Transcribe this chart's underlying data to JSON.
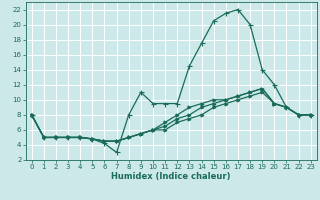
{
  "title": "",
  "xlabel": "Humidex (Indice chaleur)",
  "bg_color": "#cce8e8",
  "grid_color": "#ffffff",
  "line_color": "#1a6b5a",
  "xlim": [
    -0.5,
    23.5
  ],
  "ylim": [
    2,
    23
  ],
  "xticks": [
    0,
    1,
    2,
    3,
    4,
    5,
    6,
    7,
    8,
    9,
    10,
    11,
    12,
    13,
    14,
    15,
    16,
    17,
    18,
    19,
    20,
    21,
    22,
    23
  ],
  "yticks": [
    2,
    4,
    6,
    8,
    10,
    12,
    14,
    16,
    18,
    20,
    22
  ],
  "curve1_x": [
    0,
    1,
    2,
    3,
    4,
    5,
    6,
    7,
    8,
    9,
    10,
    11,
    12,
    13,
    14,
    15,
    16,
    17,
    18,
    19,
    20,
    21,
    22,
    23
  ],
  "curve1_y": [
    8,
    5,
    5,
    5,
    5,
    4.8,
    4.2,
    3,
    8,
    11,
    9.5,
    9.5,
    9.5,
    14.5,
    17.5,
    20.5,
    21.5,
    22,
    20,
    14,
    12,
    9,
    8,
    8
  ],
  "curve2_x": [
    0,
    1,
    2,
    3,
    4,
    5,
    6,
    7,
    8,
    9,
    10,
    11,
    12,
    13,
    14,
    15,
    16,
    17,
    18,
    19,
    20,
    21,
    22,
    23
  ],
  "curve2_y": [
    8,
    5,
    5,
    5,
    5,
    4.8,
    4.5,
    4.5,
    5,
    5.5,
    6,
    7,
    8,
    9,
    9.5,
    10,
    10,
    10.5,
    11,
    11.5,
    9.5,
    9,
    8,
    8
  ],
  "curve3_x": [
    0,
    1,
    2,
    3,
    4,
    5,
    6,
    7,
    8,
    9,
    10,
    11,
    12,
    13,
    14,
    15,
    16,
    17,
    18,
    19,
    20,
    21,
    22,
    23
  ],
  "curve3_y": [
    8,
    5,
    5,
    5,
    5,
    4.8,
    4.5,
    4.5,
    5,
    5.5,
    6,
    6.5,
    7.5,
    8,
    9,
    9.5,
    10,
    10.5,
    11,
    11.5,
    9.5,
    9,
    8,
    8
  ],
  "curve4_x": [
    0,
    1,
    2,
    3,
    4,
    5,
    6,
    7,
    8,
    9,
    10,
    11,
    12,
    13,
    14,
    15,
    16,
    17,
    18,
    19,
    20,
    21,
    22,
    23
  ],
  "curve4_y": [
    8,
    5,
    5,
    5,
    5,
    4.8,
    4.5,
    4.5,
    5,
    5.5,
    6,
    6,
    7,
    7.5,
    8,
    9,
    9.5,
    10,
    10.5,
    11,
    9.5,
    9,
    8,
    8
  ]
}
